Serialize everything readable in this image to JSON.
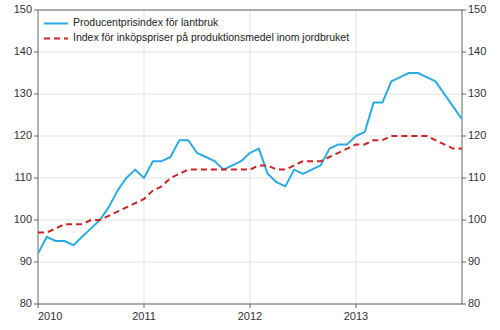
{
  "chart_data": {
    "type": "line",
    "categories": [
      "2010",
      null,
      null,
      null,
      null,
      null,
      null,
      null,
      null,
      null,
      null,
      null,
      "2011",
      null,
      null,
      null,
      null,
      null,
      null,
      null,
      null,
      null,
      null,
      null,
      "2012",
      null,
      null,
      null,
      null,
      null,
      null,
      null,
      null,
      null,
      null,
      null,
      "2013",
      null,
      null,
      null,
      null,
      null,
      null,
      null,
      null,
      null,
      null,
      null,
      null
    ],
    "series": [
      {
        "name": "Producentprisindex för lantbruk",
        "color": "#29abe2",
        "line_style": "solid",
        "values": [
          92,
          96,
          95,
          95,
          94,
          96,
          98,
          100,
          103,
          107,
          110,
          112,
          110,
          114,
          114,
          115,
          119,
          119,
          116,
          115,
          114,
          112,
          113,
          114,
          116,
          117,
          111,
          109,
          108,
          112,
          111,
          112,
          113,
          117,
          118,
          118,
          120,
          121,
          128,
          128,
          133,
          134,
          135,
          135,
          134,
          133,
          130,
          127,
          124
        ]
      },
      {
        "name": "Index för inköpspriser på produktionsmedel inom jordbruket",
        "color": "#cc2222",
        "line_style": "dashed",
        "values": [
          97,
          97,
          98,
          99,
          99,
          99,
          100,
          100,
          101,
          102,
          103,
          104,
          105,
          107,
          108,
          110,
          111,
          112,
          112,
          112,
          112,
          112,
          112,
          112,
          112,
          113,
          113,
          112,
          112,
          113,
          114,
          114,
          114,
          115,
          116,
          117,
          118,
          118,
          119,
          119,
          120,
          120,
          120,
          120,
          120,
          119,
          118,
          117,
          117
        ]
      }
    ],
    "ylim": [
      80,
      150
    ],
    "yticks": [
      80,
      90,
      100,
      110,
      120,
      130,
      140,
      150
    ],
    "y2lim": [
      80,
      150
    ],
    "y2ticks": [
      80,
      90,
      100,
      110,
      120,
      130,
      140,
      150
    ],
    "grid": true,
    "legend": "upper left"
  }
}
